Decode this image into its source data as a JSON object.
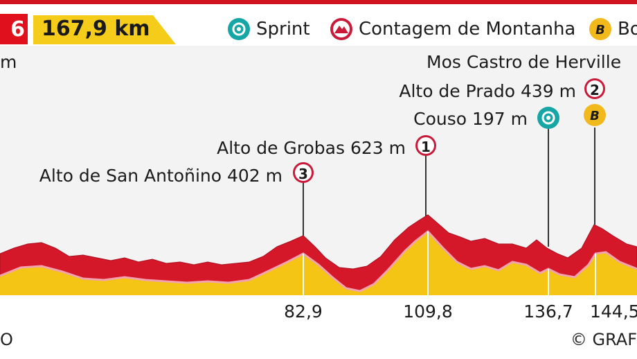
{
  "header": {
    "stage_number": "6",
    "distance": "167,9 km",
    "legend": [
      {
        "icon": "sprint-icon",
        "label": "Sprint"
      },
      {
        "icon": "mountain-icon",
        "label": "Contagem de Montanha"
      },
      {
        "icon": "bonus-icon",
        "label": "Bo"
      }
    ]
  },
  "top_left_text": "m",
  "footer": {
    "left": "O",
    "right": "© GRAF"
  },
  "colors": {
    "profile_red": "#d5172a",
    "profile_red_dark": "#a8101f",
    "fill_yellow": "#f4c515",
    "sprint_teal": "#16a6a6",
    "bonus_yellow": "#f1b91c",
    "mountain_red": "#c91a3a"
  },
  "chart_data": {
    "type": "area",
    "title": "",
    "xlabel": "",
    "ylabel": "",
    "x_unit": "km",
    "y_unit": "m",
    "x_ticks": [
      "82,9",
      "109,8",
      "136,7",
      "144,5"
    ],
    "profile": {
      "x": [
        70,
        74,
        78,
        82.9,
        88,
        92,
        98,
        104,
        109.8,
        114,
        118,
        122,
        126,
        130,
        134,
        136.7,
        140,
        144.5,
        148
      ],
      "y": [
        250,
        300,
        360,
        402,
        300,
        230,
        180,
        420,
        623,
        500,
        430,
        380,
        300,
        260,
        250,
        197,
        280,
        439,
        330
      ]
    },
    "points": [
      {
        "name": "Alto de San Antoñino 402 m",
        "km": 82.9,
        "category": "3",
        "type": "mountain"
      },
      {
        "name": "Alto de Grobas 623 m",
        "km": 109.8,
        "category": "1",
        "type": "mountain"
      },
      {
        "name": "Couso 197 m",
        "km": 136.7,
        "type": "sprint"
      },
      {
        "name": "Alto de Prado 439 m",
        "km": 144.5,
        "category": "2",
        "type": "mountain"
      },
      {
        "name": "Mos Castro de Herville",
        "km": 144.5,
        "type": "bonus",
        "badge": "B"
      }
    ]
  }
}
